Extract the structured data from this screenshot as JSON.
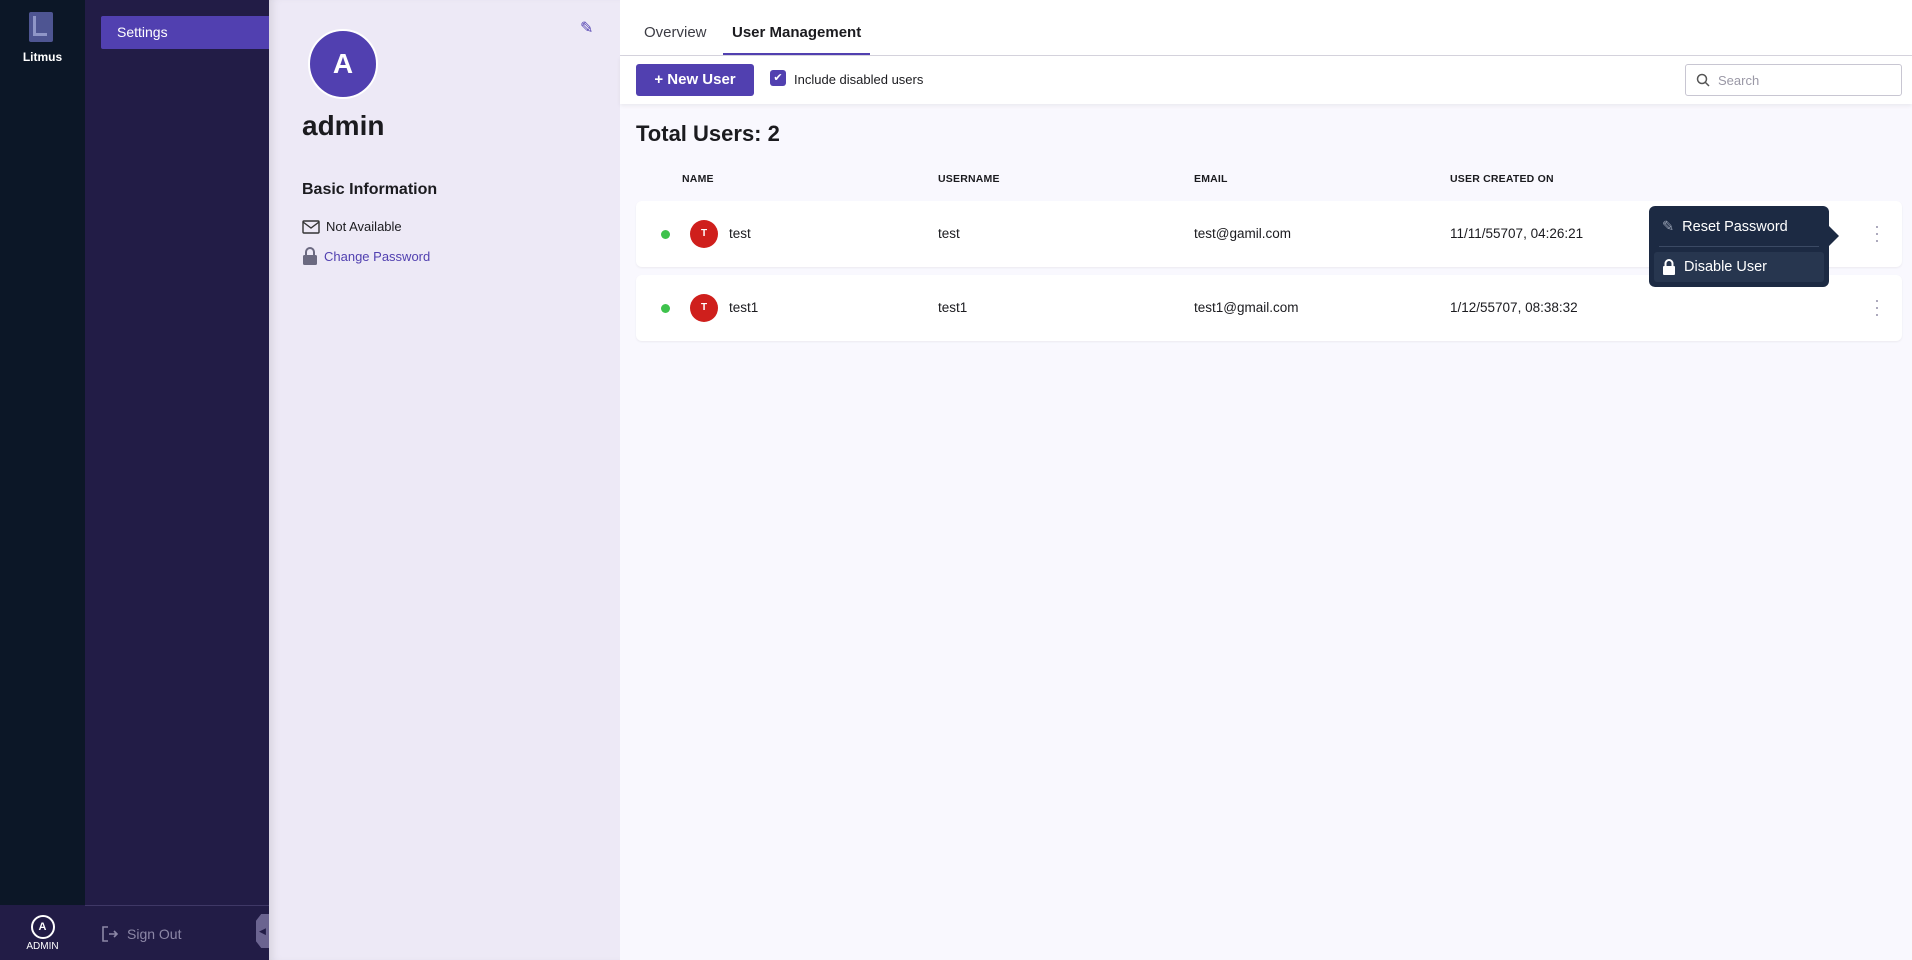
{
  "app": {
    "name": "Litmus",
    "user_initial": "A",
    "user_label": "ADMIN"
  },
  "nav": {
    "items": [
      {
        "label": "Settings"
      }
    ],
    "sign_out": "Sign Out"
  },
  "profile": {
    "initial": "A",
    "name": "admin",
    "section": "Basic Information",
    "email": "Not Available",
    "change_password": "Change Password"
  },
  "tabs": [
    {
      "label": "Overview"
    },
    {
      "label": "User Management",
      "active": true
    }
  ],
  "toolbar": {
    "new_user": "+ New User",
    "include_disabled": "Include disabled users",
    "include_disabled_checked": true,
    "search_placeholder": "Search"
  },
  "total": "Total Users: 2",
  "columns": [
    "NAME",
    "USERNAME",
    "EMAIL",
    "USER CREATED ON"
  ],
  "users": [
    {
      "initial": "T",
      "name": "test",
      "username": "test",
      "email": "test@gamil.com",
      "created": "11/11/55707, 04:26:21",
      "status": "active"
    },
    {
      "initial": "T",
      "name": "test1",
      "username": "test1",
      "email": "test1@gmail.com",
      "created": "1/12/55707, 08:38:32",
      "status": "active"
    }
  ],
  "menu": {
    "reset": "Reset Password",
    "disable": "Disable User"
  },
  "colors": {
    "accent": "#5140b0",
    "active_status": "#3ec24c",
    "avatar": "#cf1f1c"
  }
}
